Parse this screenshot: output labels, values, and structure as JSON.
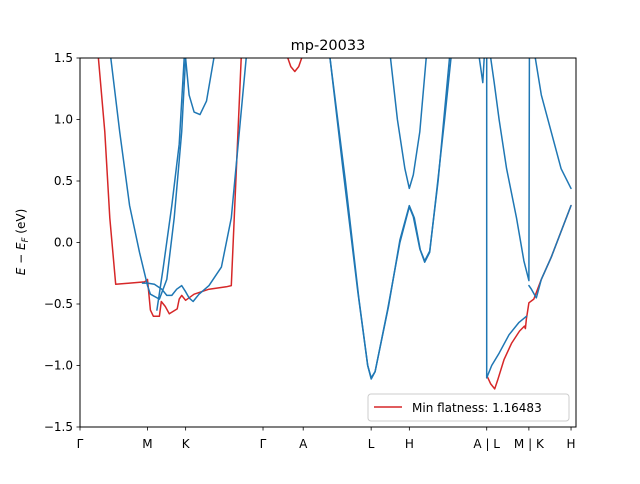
{
  "chart_data": {
    "type": "line",
    "title": "mp-20033",
    "ylabel_main": "E − E",
    "ylabel_sub": "F",
    "ylabel_unit": " (eV)",
    "ylim": [
      -1.5,
      1.5
    ],
    "xlim": [
      0,
      10
    ],
    "yticks": [
      {
        "value": -1.5,
        "label": "−1.5"
      },
      {
        "value": -1.0,
        "label": "−1.0"
      },
      {
        "value": -0.5,
        "label": "−0.5"
      },
      {
        "value": 0.0,
        "label": "0.0"
      },
      {
        "value": 0.5,
        "label": "0.5"
      },
      {
        "value": 1.0,
        "label": "1.0"
      },
      {
        "value": 1.5,
        "label": "1.5"
      }
    ],
    "xticks": [
      {
        "value": 0.0,
        "label": "Γ"
      },
      {
        "value": 1.36,
        "label": "M"
      },
      {
        "value": 2.13,
        "label": "K"
      },
      {
        "value": 3.69,
        "label": "Γ"
      },
      {
        "value": 4.5,
        "label": "A"
      },
      {
        "value": 5.87,
        "label": "L"
      },
      {
        "value": 6.64,
        "label": "H"
      },
      {
        "value": 8.2,
        "label": "A | L"
      },
      {
        "value": 9.05,
        "label": "M | K"
      },
      {
        "value": 9.9,
        "label": "H"
      }
    ],
    "grid": false,
    "legend": {
      "position": "bottom-right",
      "entries": [
        {
          "label": "Min flatness: 1.16483",
          "color": "#d62728"
        }
      ]
    },
    "series": [
      {
        "color": "#d62728",
        "segments": [
          [
            [
              0.37,
              1.5
            ],
            [
              0.5,
              0.9
            ],
            [
              0.6,
              0.2
            ],
            [
              0.72,
              -0.34
            ],
            [
              1.0,
              -0.33
            ],
            [
              1.3,
              -0.32
            ],
            [
              1.36,
              -0.3
            ],
            [
              1.42,
              -0.55
            ],
            [
              1.48,
              -0.6
            ],
            [
              1.54,
              -0.6
            ],
            [
              1.6,
              -0.6
            ],
            [
              1.64,
              -0.48
            ],
            [
              1.72,
              -0.52
            ],
            [
              1.8,
              -0.58
            ],
            [
              1.96,
              -0.54
            ],
            [
              2.0,
              -0.46
            ],
            [
              2.05,
              -0.43
            ],
            [
              2.13,
              -0.47
            ],
            [
              2.3,
              -0.42
            ],
            [
              2.6,
              -0.38
            ],
            [
              2.95,
              -0.36
            ],
            [
              3.05,
              -0.35
            ],
            [
              3.25,
              1.5
            ]
          ],
          [
            [
              4.19,
              1.5
            ],
            [
              4.25,
              1.43
            ],
            [
              4.33,
              1.39
            ],
            [
              4.41,
              1.43
            ],
            [
              4.47,
              1.5
            ]
          ],
          [
            [
              8.2,
              -1.08
            ],
            [
              8.28,
              -1.15
            ],
            [
              8.36,
              -1.19
            ],
            [
              8.42,
              -1.12
            ],
            [
              8.55,
              -0.95
            ],
            [
              8.7,
              -0.82
            ],
            [
              8.86,
              -0.72
            ],
            [
              8.96,
              -0.68
            ],
            [
              8.98,
              -0.7
            ],
            [
              9.0,
              -0.62
            ],
            [
              9.02,
              -0.57
            ],
            [
              9.05,
              -0.49
            ],
            [
              9.15,
              -0.46
            ],
            [
              9.3,
              -0.3
            ],
            [
              9.5,
              -0.12
            ],
            [
              9.9,
              0.3
            ]
          ]
        ]
      },
      {
        "color": "#1f77b4",
        "segments": [
          [
            [
              0.62,
              1.5
            ],
            [
              0.8,
              0.9
            ],
            [
              1.0,
              0.3
            ],
            [
              1.2,
              -0.08
            ],
            [
              1.36,
              -0.35
            ],
            [
              1.42,
              -0.42
            ],
            [
              1.6,
              -0.46
            ],
            [
              1.75,
              -0.3
            ],
            [
              1.9,
              0.2
            ],
            [
              2.05,
              0.9
            ],
            [
              2.13,
              1.5
            ]
          ],
          [
            [
              1.26,
              -0.33
            ],
            [
              1.36,
              -0.33
            ],
            [
              1.5,
              -0.34
            ],
            [
              1.65,
              -0.38
            ],
            [
              1.75,
              -0.43
            ],
            [
              1.85,
              -0.43
            ],
            [
              1.95,
              -0.38
            ],
            [
              2.05,
              -0.35
            ],
            [
              2.13,
              -0.4
            ],
            [
              2.2,
              -0.45
            ],
            [
              2.28,
              -0.48
            ],
            [
              2.4,
              -0.42
            ],
            [
              2.6,
              -0.35
            ],
            [
              2.85,
              -0.2
            ],
            [
              3.05,
              0.2
            ],
            [
              3.35,
              1.5
            ]
          ],
          [
            [
              2.13,
              1.5
            ],
            [
              2.2,
              1.2
            ],
            [
              2.3,
              1.06
            ],
            [
              2.42,
              1.04
            ],
            [
              2.55,
              1.15
            ],
            [
              2.7,
              1.5
            ]
          ],
          [
            [
              1.55,
              -0.55
            ],
            [
              1.68,
              -0.2
            ],
            [
              1.85,
              0.3
            ],
            [
              2.0,
              0.8
            ],
            [
              2.1,
              1.5
            ]
          ],
          [
            [
              5.04,
              1.5
            ],
            [
              5.3,
              0.6
            ],
            [
              5.6,
              -0.4
            ],
            [
              5.8,
              -1.0
            ],
            [
              5.87,
              -1.1
            ],
            [
              5.95,
              -1.05
            ],
            [
              6.2,
              -0.55
            ],
            [
              6.45,
              0.0
            ],
            [
              6.64,
              0.29
            ],
            [
              6.72,
              0.21
            ],
            [
              6.85,
              -0.05
            ],
            [
              6.95,
              -0.16
            ],
            [
              7.05,
              -0.08
            ],
            [
              7.2,
              0.45
            ],
            [
              7.35,
              1.0
            ],
            [
              7.48,
              1.5
            ]
          ],
          [
            [
              5.04,
              1.5
            ],
            [
              5.35,
              0.5
            ],
            [
              5.62,
              -0.45
            ],
            [
              5.8,
              -1.0
            ],
            [
              5.87,
              -1.11
            ],
            [
              5.95,
              -1.05
            ],
            [
              6.22,
              -0.52
            ],
            [
              6.45,
              0.02
            ],
            [
              6.64,
              0.3
            ],
            [
              6.74,
              0.2
            ],
            [
              6.86,
              -0.06
            ],
            [
              6.95,
              -0.15
            ],
            [
              7.05,
              -0.07
            ],
            [
              7.22,
              0.5
            ],
            [
              7.45,
              1.5
            ]
          ],
          [
            [
              6.26,
              1.5
            ],
            [
              6.4,
              1.0
            ],
            [
              6.55,
              0.6
            ],
            [
              6.64,
              0.44
            ],
            [
              6.72,
              0.55
            ],
            [
              6.85,
              0.9
            ],
            [
              6.98,
              1.5
            ]
          ],
          [
            [
              8.05,
              1.5
            ],
            [
              8.12,
              1.3
            ],
            [
              8.15,
              1.5
            ]
          ],
          [
            [
              8.2,
              1.5
            ],
            [
              8.2,
              -1.1
            ]
          ],
          [
            [
              8.2,
              -1.1
            ],
            [
              8.3,
              -1.0
            ],
            [
              8.45,
              -0.9
            ],
            [
              8.65,
              -0.75
            ],
            [
              8.85,
              -0.65
            ],
            [
              9.0,
              -0.6
            ]
          ],
          [
            [
              8.28,
              1.5
            ],
            [
              8.35,
              1.3
            ],
            [
              8.45,
              1.0
            ],
            [
              8.6,
              0.6
            ],
            [
              8.8,
              0.2
            ],
            [
              8.95,
              -0.15
            ],
            [
              9.05,
              -0.31
            ],
            [
              9.06,
              1.5
            ]
          ],
          [
            [
              9.18,
              1.5
            ],
            [
              9.3,
              1.2
            ],
            [
              9.5,
              0.9
            ],
            [
              9.7,
              0.6
            ],
            [
              9.9,
              0.44
            ]
          ],
          [
            [
              9.05,
              -0.35
            ],
            [
              9.1,
              -0.38
            ],
            [
              9.2,
              -0.45
            ],
            [
              9.3,
              -0.3
            ],
            [
              9.5,
              -0.12
            ],
            [
              9.9,
              0.3
            ]
          ]
        ]
      }
    ]
  }
}
